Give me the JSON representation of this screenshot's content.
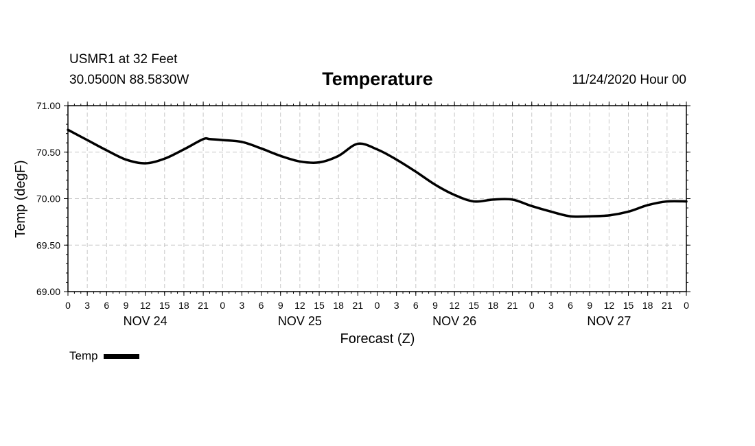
{
  "header": {
    "station": "USMR1 at 32 Feet",
    "coords": "30.0500N 88.5830W",
    "datetime": "11/24/2020 Hour 00"
  },
  "chart_data": {
    "type": "line",
    "title": "Temperature",
    "xlabel": "Forecast (Z)",
    "ylabel": "Temp (degF)",
    "ylim": [
      69.0,
      71.0
    ],
    "yticks": [
      69.0,
      69.5,
      70.0,
      70.5,
      71.0
    ],
    "ytick_labels": [
      "69.00",
      "69.50",
      "70.00",
      "70.50",
      "71.00"
    ],
    "xlim_hours": [
      0,
      96
    ],
    "xtick_step_hours": 3,
    "xtick_labels": [
      "0",
      "3",
      "6",
      "9",
      "12",
      "15",
      "18",
      "21",
      "0",
      "3",
      "6",
      "9",
      "12",
      "15",
      "18",
      "21",
      "0",
      "3",
      "6",
      "9",
      "12",
      "15",
      "18",
      "21",
      "0",
      "3",
      "6",
      "9",
      "12",
      "15",
      "18",
      "21",
      "0"
    ],
    "day_labels": [
      {
        "label": "NOV 24",
        "hour": 12
      },
      {
        "label": "NOV 25",
        "hour": 36
      },
      {
        "label": "NOV 26",
        "hour": 60
      },
      {
        "label": "NOV 27",
        "hour": 84
      }
    ],
    "grid": true,
    "series": [
      {
        "name": "Temp",
        "hours": [
          0,
          3,
          6,
          9,
          12,
          15,
          18,
          21,
          22,
          24,
          27,
          30,
          33,
          36,
          39,
          42,
          45,
          48,
          51,
          54,
          57,
          60,
          63,
          66,
          69,
          72,
          75,
          78,
          81,
          84,
          87,
          90,
          93,
          96
        ],
        "values": [
          70.74,
          70.63,
          70.52,
          70.42,
          70.38,
          70.43,
          70.53,
          70.64,
          70.64,
          70.63,
          70.61,
          70.54,
          70.46,
          70.4,
          70.39,
          70.46,
          70.59,
          70.53,
          70.42,
          70.29,
          70.15,
          70.04,
          69.97,
          69.99,
          69.99,
          69.92,
          69.86,
          69.81,
          69.81,
          69.82,
          69.86,
          69.93,
          69.97,
          69.97
        ]
      }
    ]
  },
  "legend": {
    "items": [
      {
        "label": "Temp"
      }
    ]
  }
}
